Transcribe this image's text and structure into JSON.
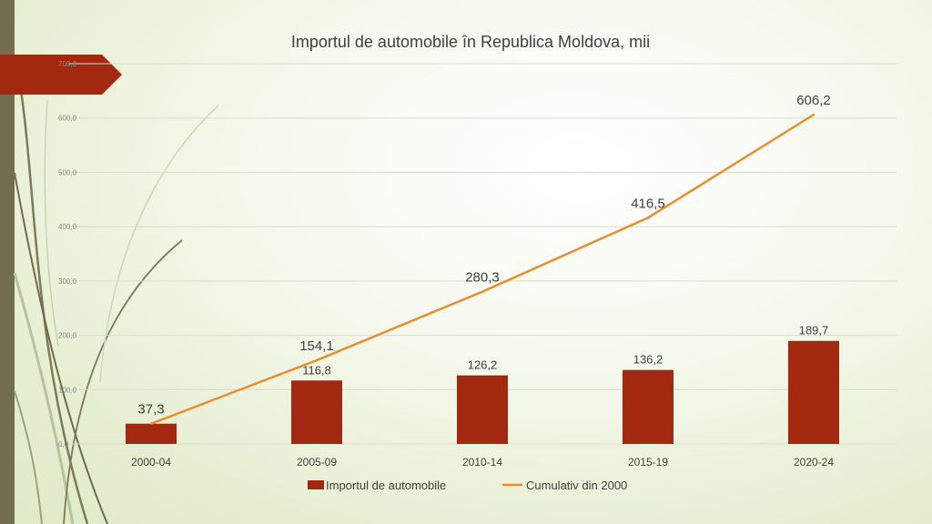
{
  "chart_data": {
    "type": "bar",
    "title": "Importul de automobile în Republica Moldova, mii",
    "categories": [
      "2000-04",
      "2005-09",
      "2010-14",
      "2015-19",
      "2020-24"
    ],
    "series": [
      {
        "name": "Importul de automobile",
        "kind": "bar",
        "color": "#a2290f",
        "values": [
          37.3,
          116.8,
          126.2,
          136.2,
          189.7
        ],
        "labels": [
          "37,3",
          "116,8",
          "126,2",
          "136,2",
          "189,7"
        ]
      },
      {
        "name": "Cumulativ din 2000",
        "kind": "line",
        "color": "#ee8a26",
        "values": [
          37.3,
          154.1,
          280.3,
          416.5,
          606.2
        ],
        "labels": [
          "37,3",
          "154,1",
          "280,3",
          "416,5",
          "606,2"
        ]
      }
    ],
    "ylim": [
      0,
      700
    ],
    "ytick_values": [
      0,
      100,
      200,
      300,
      400,
      500,
      600,
      700
    ],
    "ytick_labels": [
      "0,0",
      "100,0",
      "200,0",
      "300,0",
      "400,0",
      "500,0",
      "600,0",
      "700,0"
    ],
    "grid": true,
    "legend": "bottom",
    "xlabel": "",
    "ylabel": ""
  },
  "colors": {
    "sidebar": "#736d52",
    "flag": "#a2290f",
    "bar": "#a2290f",
    "line": "#ee8a26",
    "grid": "#d8dccb"
  }
}
